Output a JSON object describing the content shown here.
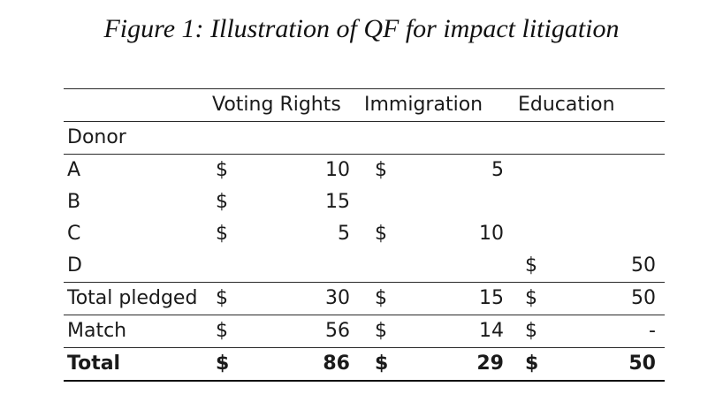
{
  "caption": "Figure 1: Illustration of QF for impact litigation",
  "headers": [
    "Voting Rights",
    "Immigration",
    "Education"
  ],
  "subheader": "Donor",
  "rows": [
    {
      "label": "A",
      "d1": "$",
      "v1": "10",
      "d2": "$",
      "v2": "5",
      "d3": "",
      "v3": ""
    },
    {
      "label": "B",
      "d1": "$",
      "v1": "15",
      "d2": "",
      "v2": "",
      "d3": "",
      "v3": ""
    },
    {
      "label": "C",
      "d1": "$",
      "v1": "5",
      "d2": "$",
      "v2": "10",
      "d3": "",
      "v3": ""
    },
    {
      "label": "D",
      "d1": "",
      "v1": "",
      "d2": "",
      "v2": "",
      "d3": "$",
      "v3": "50"
    },
    {
      "label": "Total pledged",
      "d1": "$",
      "v1": "30",
      "d2": "$",
      "v2": "15",
      "d3": "$",
      "v3": "50"
    },
    {
      "label": "Match",
      "d1": "$",
      "v1": "56",
      "d2": "$",
      "v2": "14",
      "d3": "$",
      "v3": "-"
    },
    {
      "label": "Total",
      "d1": "$",
      "v1": "86",
      "d2": "$",
      "v2": "29",
      "d3": "$",
      "v3": "50"
    }
  ]
}
